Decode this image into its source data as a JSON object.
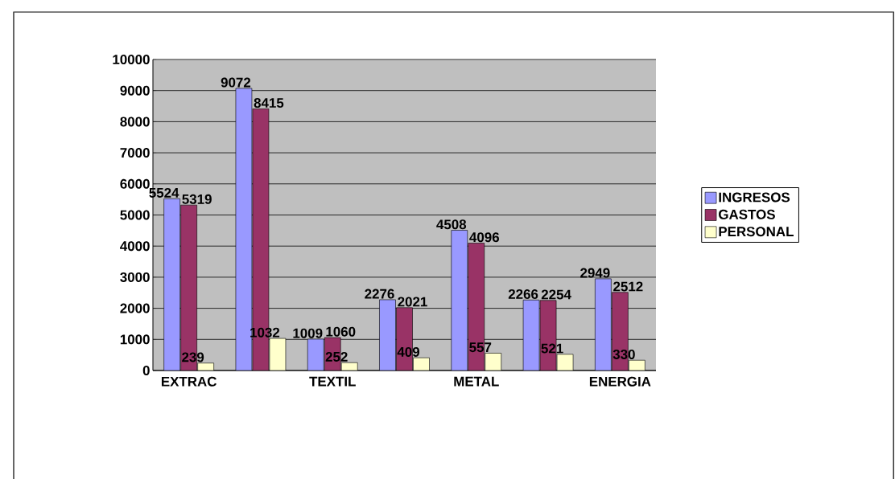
{
  "chart_data": {
    "type": "bar",
    "categories": [
      "EXTRAC",
      null,
      "TEXTIL",
      null,
      "METAL",
      null,
      "ENERGIA"
    ],
    "series": [
      {
        "name": "INGRESOS",
        "color": "#9999ff",
        "values": [
          5524,
          9072,
          1009,
          2276,
          4508,
          2266,
          2949
        ]
      },
      {
        "name": "GASTOS",
        "color": "#993366",
        "values": [
          5319,
          8415,
          1060,
          2021,
          4096,
          2254,
          2512
        ]
      },
      {
        "name": "PERSONAL",
        "color": "#ffffcc",
        "values": [
          239,
          1032,
          252,
          409,
          557,
          521,
          330
        ]
      }
    ],
    "ylim": [
      0,
      10000
    ],
    "yticks": [
      0,
      1000,
      2000,
      3000,
      4000,
      5000,
      6000,
      7000,
      8000,
      9000,
      10000
    ],
    "grid": "y",
    "legend": "right",
    "data_labels": true
  }
}
